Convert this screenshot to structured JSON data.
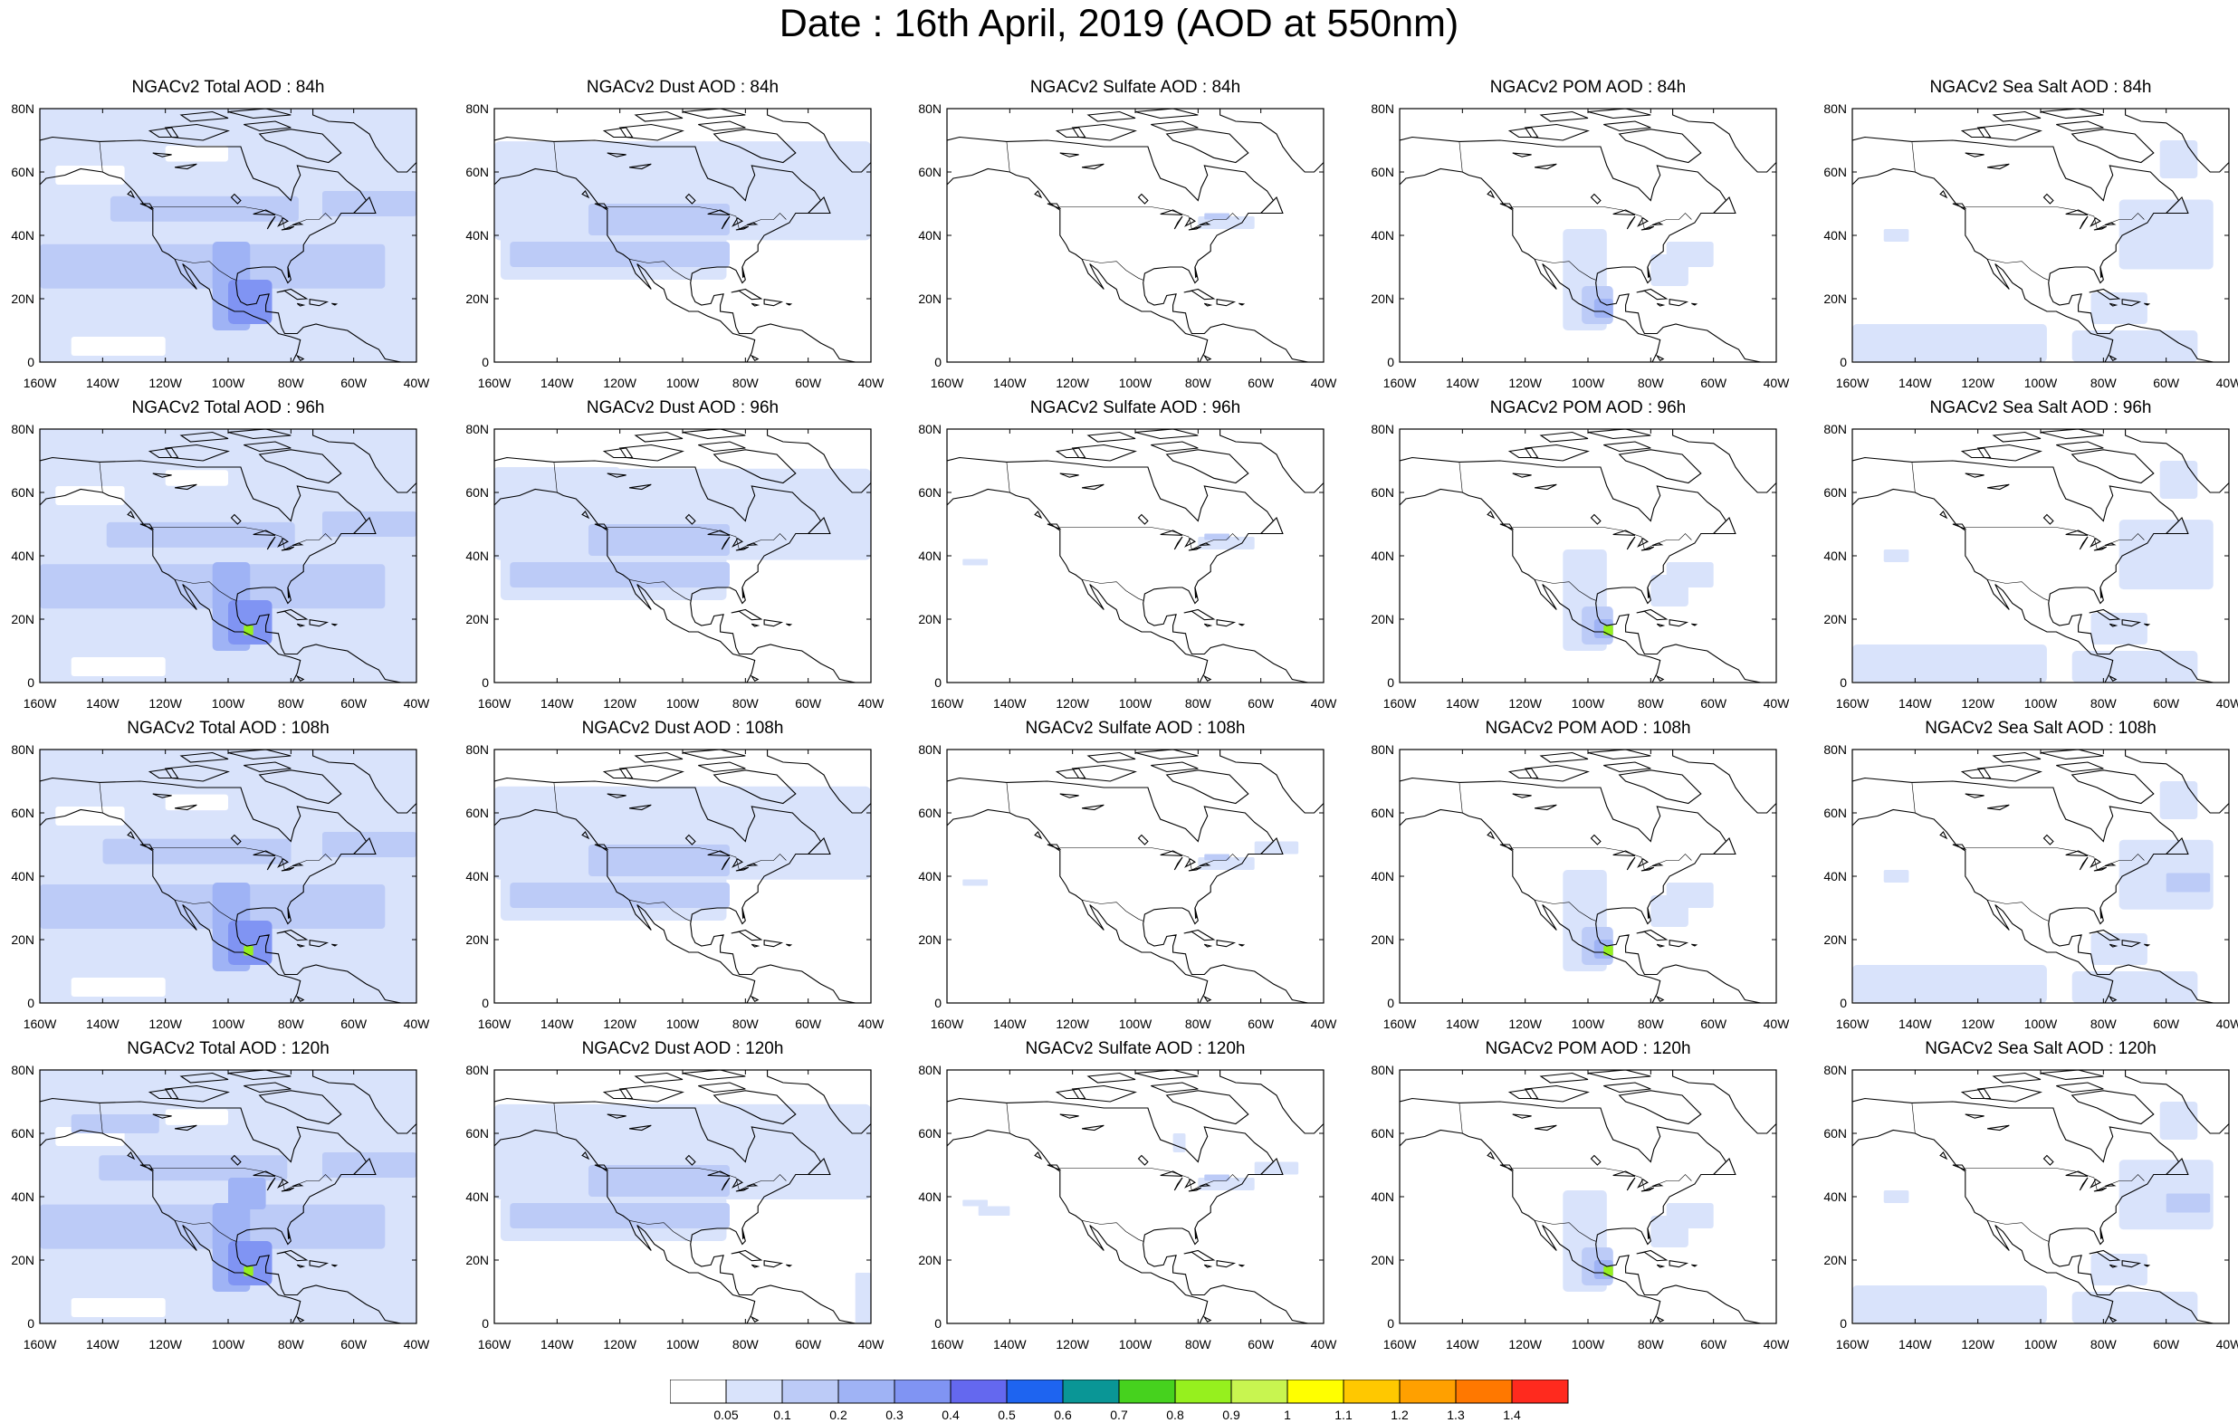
{
  "title": "Date : 16th April, 2019 (AOD at 550nm)",
  "lat_labels": [
    "80N",
    "60N",
    "40N",
    "20N",
    "0"
  ],
  "lon_labels": [
    "160W",
    "140W",
    "120W",
    "100W",
    "80W",
    "60W",
    "40W"
  ],
  "rows": [
    {
      "lead": "84h",
      "panels": [
        {
          "title": "NGACv2 Total AOD : 84h",
          "species": "total"
        },
        {
          "title": "NGACv2 Dust AOD : 84h",
          "species": "dust"
        },
        {
          "title": "NGACv2 Sulfate AOD : 84h",
          "species": "sulfate"
        },
        {
          "title": "NGACv2 POM AOD : 84h",
          "species": "pom"
        },
        {
          "title": "NGACv2 Sea Salt AOD : 84h",
          "species": "seasalt"
        }
      ]
    },
    {
      "lead": "96h",
      "panels": [
        {
          "title": "NGACv2 Total AOD : 96h",
          "species": "total"
        },
        {
          "title": "NGACv2 Dust AOD : 96h",
          "species": "dust"
        },
        {
          "title": "NGACv2 Sulfate AOD : 96h",
          "species": "sulfate"
        },
        {
          "title": "NGACv2 POM AOD : 96h",
          "species": "pom"
        },
        {
          "title": "NGACv2 Sea Salt AOD : 96h",
          "species": "seasalt"
        }
      ]
    },
    {
      "lead": "108h",
      "panels": [
        {
          "title": "NGACv2 Total AOD : 108h",
          "species": "total"
        },
        {
          "title": "NGACv2 Dust AOD : 108h",
          "species": "dust"
        },
        {
          "title": "NGACv2 Sulfate AOD : 108h",
          "species": "sulfate"
        },
        {
          "title": "NGACv2 POM AOD : 108h",
          "species": "pom"
        },
        {
          "title": "NGACv2 Sea Salt AOD : 108h",
          "species": "seasalt"
        }
      ]
    },
    {
      "lead": "120h",
      "panels": [
        {
          "title": "NGACv2 Total AOD : 120h",
          "species": "total"
        },
        {
          "title": "NGACv2 Dust AOD : 120h",
          "species": "dust"
        },
        {
          "title": "NGACv2 Sulfate AOD : 120h",
          "species": "sulfate"
        },
        {
          "title": "NGACv2 POM AOD : 120h",
          "species": "pom"
        },
        {
          "title": "NGACv2 Sea Salt  AOD : 120h",
          "species": "seasalt"
        }
      ]
    }
  ],
  "colorbar": {
    "labels": [
      "0.05",
      "0.1",
      "0.2",
      "0.3",
      "0.4",
      "0.5",
      "0.6",
      "0.7",
      "0.8",
      "0.9",
      "1",
      "1.1",
      "1.2",
      "1.3",
      "1.4"
    ],
    "colors": [
      "#ffffff",
      "#d9e3fb",
      "#bccbf7",
      "#9fb3f5",
      "#8094f3",
      "#6468ef",
      "#1e64f0",
      "#0a9696",
      "#46d21e",
      "#96f01e",
      "#c8f550",
      "#ffff00",
      "#ffc800",
      "#ffa000",
      "#ff7800",
      "#ff2a1e"
    ]
  }
}
